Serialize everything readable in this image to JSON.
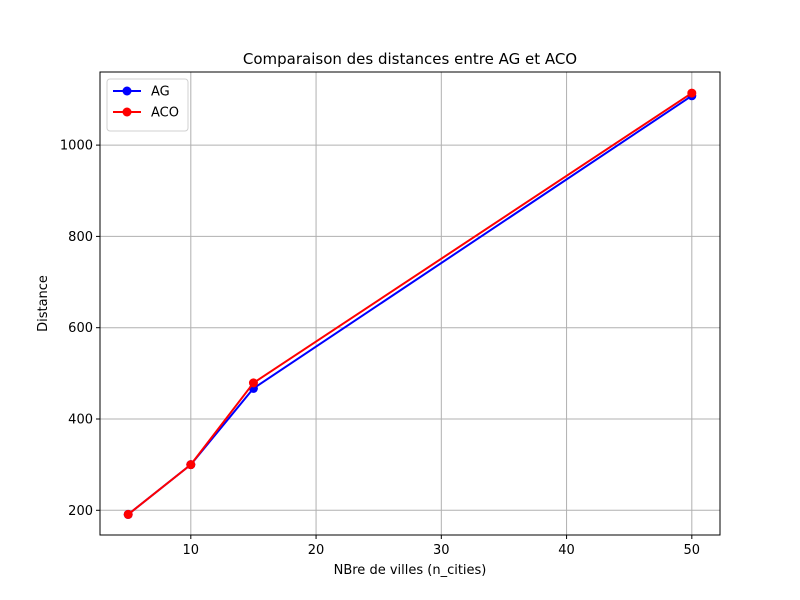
{
  "chart_data": {
    "type": "line",
    "title": "Comparaison des distances entre AG et ACO",
    "xlabel": "NBre de villes (n_cities)",
    "ylabel": "Distance",
    "x": [
      5,
      10,
      15,
      50
    ],
    "series": [
      {
        "name": "AG",
        "color": "#0000ff",
        "marker": "circle",
        "values": [
          191,
          300,
          467,
          1108
        ]
      },
      {
        "name": "ACO",
        "color": "#ff0000",
        "marker": "circle",
        "values": [
          191,
          300,
          479,
          1114
        ]
      }
    ],
    "xlim": [
      2.75,
      52.25
    ],
    "ylim": [
      145.85,
      1160.15
    ],
    "xticks": [
      10,
      20,
      30,
      40,
      50
    ],
    "yticks": [
      200,
      400,
      600,
      800,
      1000
    ],
    "grid": true,
    "legend_position": "top-left"
  }
}
